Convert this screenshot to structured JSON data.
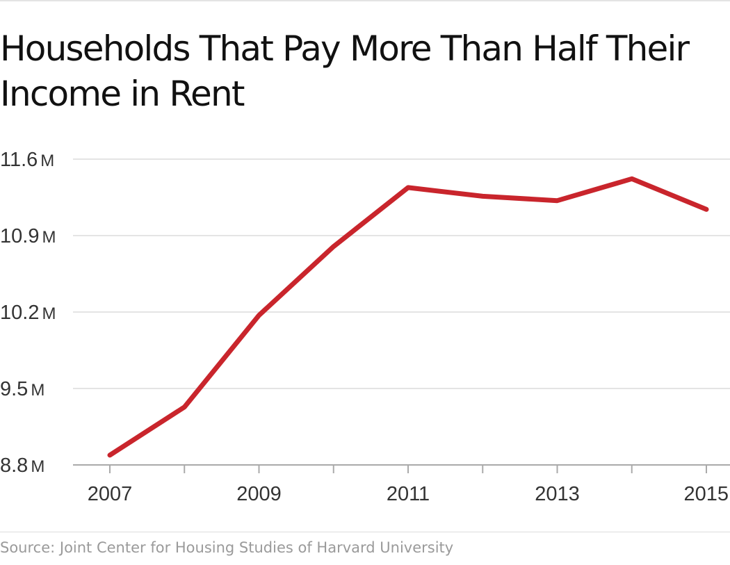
{
  "chart_data": {
    "type": "line",
    "title": "Households That Pay More Than Half Their Income in Rent",
    "xlabel": "",
    "ylabel": "",
    "x": [
      2007,
      2008,
      2009,
      2010,
      2011,
      2012,
      2013,
      2014,
      2015
    ],
    "series": [
      {
        "values": [
          8.89,
          9.33,
          10.17,
          10.8,
          11.34,
          11.26,
          11.22,
          11.42,
          11.14
        ],
        "color": "#c9252c"
      }
    ],
    "xticks": [
      2007,
      2008,
      2009,
      2010,
      2011,
      2012,
      2013,
      2014,
      2015
    ],
    "xtick_labels": [
      {
        "value": 2007,
        "label": "2007"
      },
      {
        "value": 2009,
        "label": "2009"
      },
      {
        "value": 2011,
        "label": "2011"
      },
      {
        "value": 2013,
        "label": "2013"
      },
      {
        "value": 2015,
        "label": "2015"
      }
    ],
    "yticks": [
      {
        "value": 8.8,
        "label": "8.8",
        "unit": "M"
      },
      {
        "value": 9.5,
        "label": "9.5",
        "unit": "M"
      },
      {
        "value": 10.2,
        "label": "10.2",
        "unit": "M"
      },
      {
        "value": 10.9,
        "label": "10.9",
        "unit": "M"
      },
      {
        "value": 11.6,
        "label": "11.6",
        "unit": "M"
      }
    ],
    "xlim": [
      2007,
      2015
    ],
    "ylim": [
      8.8,
      11.6
    ],
    "grid": true,
    "source": "Source: Joint Center for Housing Studies of Harvard University"
  }
}
